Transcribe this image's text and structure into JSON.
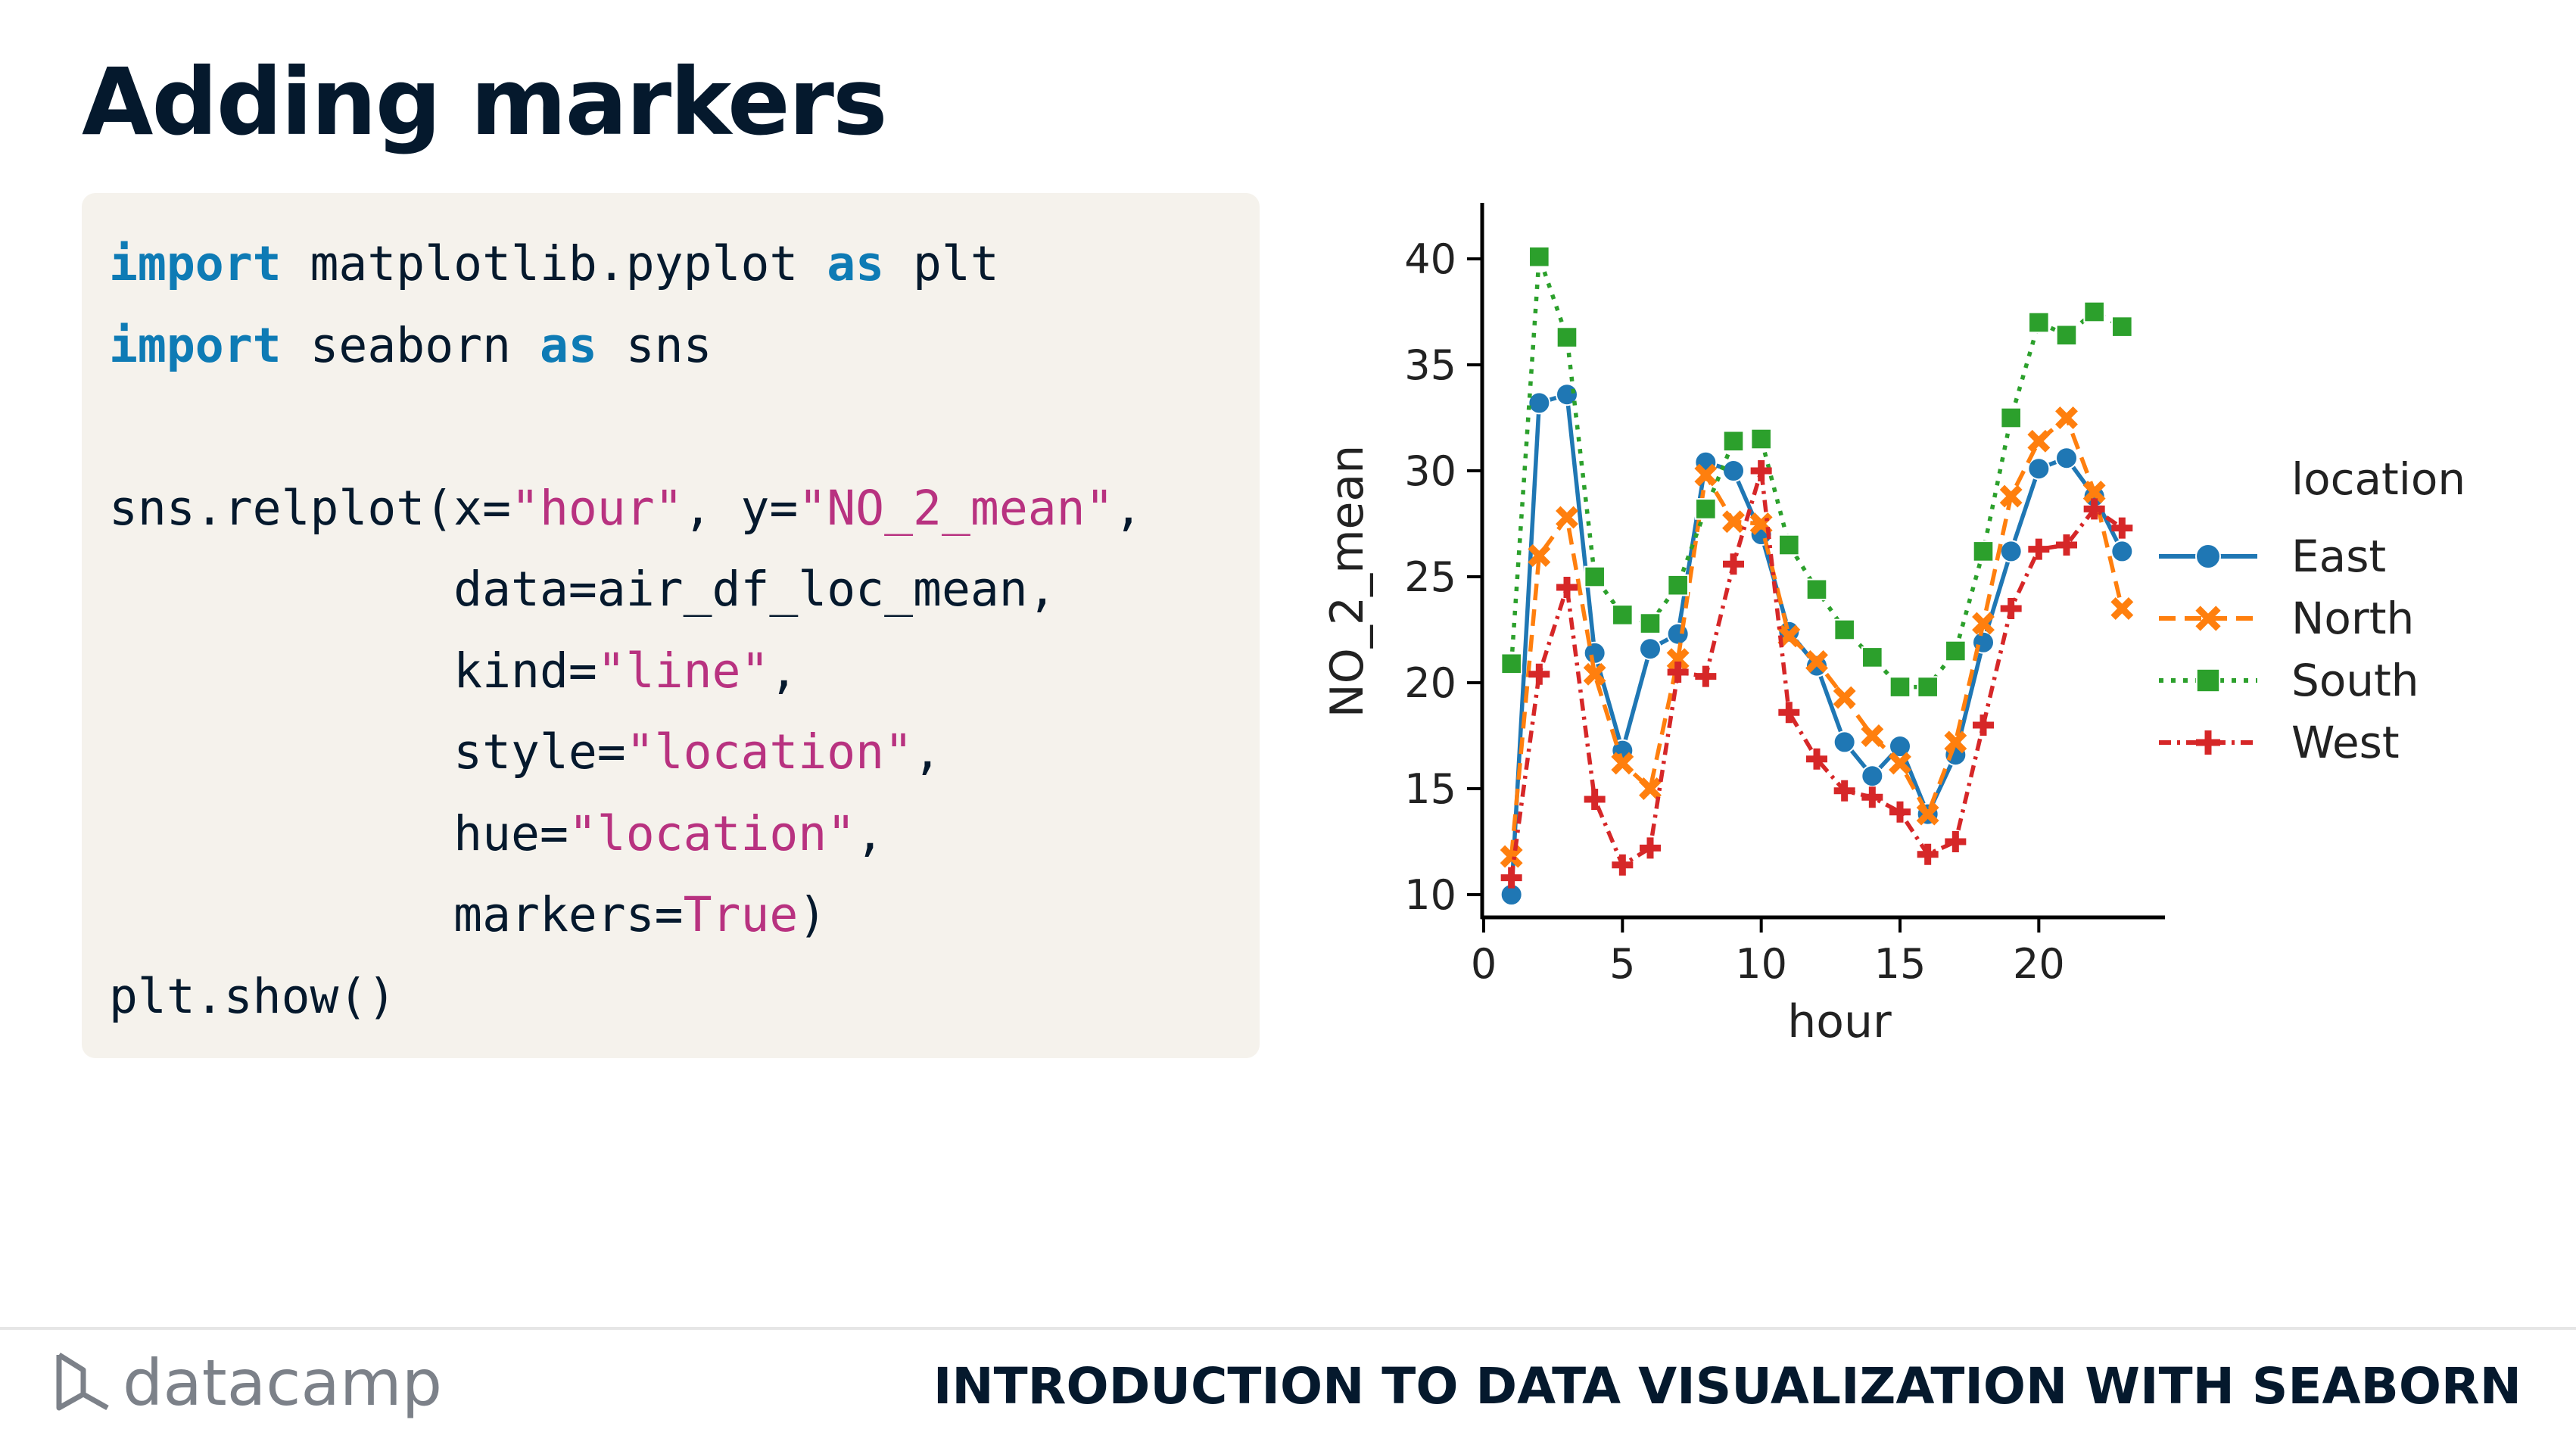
{
  "slide": {
    "title": "Adding markers",
    "course": "INTRODUCTION TO DATA VISUALIZATION WITH SEABORN",
    "brand": "datacamp"
  },
  "code": {
    "lines": [
      [
        {
          "t": "import",
          "c": "kw"
        },
        {
          "t": " matplotlib.pyplot ",
          "c": ""
        },
        {
          "t": "as",
          "c": "kw"
        },
        {
          "t": " plt",
          "c": ""
        }
      ],
      [
        {
          "t": "import",
          "c": "kw"
        },
        {
          "t": " seaborn ",
          "c": ""
        },
        {
          "t": "as",
          "c": "kw"
        },
        {
          "t": " sns",
          "c": ""
        }
      ],
      [],
      [
        {
          "t": "sns.relplot(x=",
          "c": ""
        },
        {
          "t": "\"hour\"",
          "c": "str"
        },
        {
          "t": ", y=",
          "c": ""
        },
        {
          "t": "\"NO_2_mean\"",
          "c": "str"
        },
        {
          "t": ",",
          "c": ""
        }
      ],
      [
        {
          "t": "            data=air_df_loc_mean,",
          "c": ""
        }
      ],
      [
        {
          "t": "            kind=",
          "c": ""
        },
        {
          "t": "\"line\"",
          "c": "str"
        },
        {
          "t": ",",
          "c": ""
        }
      ],
      [
        {
          "t": "            style=",
          "c": ""
        },
        {
          "t": "\"location\"",
          "c": "str"
        },
        {
          "t": ",",
          "c": ""
        }
      ],
      [
        {
          "t": "            hue=",
          "c": ""
        },
        {
          "t": "\"location\"",
          "c": "str"
        },
        {
          "t": ",",
          "c": ""
        }
      ],
      [
        {
          "t": "            markers=",
          "c": ""
        },
        {
          "t": "True",
          "c": "lit"
        },
        {
          "t": ")",
          "c": ""
        }
      ],
      [
        {
          "t": "plt.show()",
          "c": ""
        }
      ]
    ]
  },
  "chart_data": {
    "type": "line",
    "title": "",
    "xlabel": "hour",
    "ylabel": "NO_2_mean",
    "xlim": [
      0,
      24
    ],
    "ylim": [
      9,
      42
    ],
    "xticks": [
      0,
      5,
      10,
      15,
      20
    ],
    "yticks": [
      10,
      15,
      20,
      25,
      30,
      35,
      40
    ],
    "grid": false,
    "legend": {
      "title": "location",
      "placement": "right"
    },
    "x": [
      1,
      2,
      3,
      4,
      5,
      6,
      7,
      8,
      9,
      10,
      11,
      12,
      13,
      14,
      15,
      16,
      17,
      18,
      19,
      20,
      21,
      22,
      23
    ],
    "series": [
      {
        "name": "East",
        "color": "#1f77b4",
        "marker": "circle",
        "dash": "solid",
        "values": [
          10.0,
          33.2,
          33.6,
          21.4,
          16.8,
          21.6,
          22.3,
          30.4,
          30.0,
          27.0,
          22.4,
          20.8,
          17.2,
          15.6,
          17.0,
          13.8,
          16.6,
          21.9,
          26.2,
          30.1,
          30.6,
          28.8,
          26.2
        ]
      },
      {
        "name": "North",
        "color": "#ff7f0e",
        "marker": "x",
        "dash": "dashed",
        "values": [
          11.8,
          26.0,
          27.8,
          20.4,
          16.2,
          15.0,
          21.1,
          29.8,
          27.6,
          27.5,
          22.2,
          21.0,
          19.3,
          17.5,
          16.2,
          13.8,
          17.2,
          22.8,
          28.8,
          31.4,
          32.5,
          29.0,
          23.5
        ]
      },
      {
        "name": "South",
        "color": "#2ca02c",
        "marker": "square",
        "dash": "dotted",
        "values": [
          20.9,
          40.1,
          36.3,
          25.0,
          23.2,
          22.8,
          24.6,
          28.2,
          31.4,
          31.5,
          26.5,
          24.4,
          22.5,
          21.2,
          19.8,
          19.8,
          21.5,
          26.2,
          32.5,
          37.0,
          36.4,
          37.5,
          36.8
        ]
      },
      {
        "name": "West",
        "color": "#d62728",
        "marker": "plus",
        "dash": "dashdot",
        "values": [
          10.8,
          20.4,
          24.5,
          14.5,
          11.4,
          12.2,
          20.5,
          20.3,
          25.6,
          30.0,
          18.6,
          16.4,
          14.9,
          14.6,
          13.9,
          11.9,
          12.5,
          18.0,
          23.5,
          26.3,
          26.5,
          28.2,
          27.3
        ]
      }
    ]
  }
}
